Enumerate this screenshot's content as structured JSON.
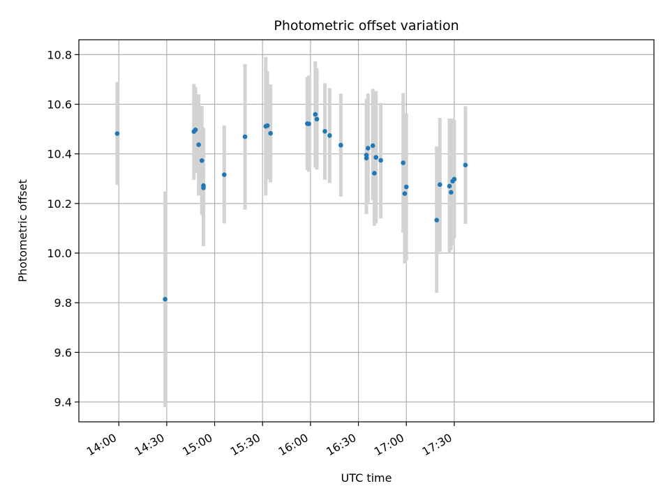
{
  "chart_data": {
    "type": "scatter",
    "title": "Photometric offset variation",
    "xlabel": "UTC time",
    "ylabel": "Photometric offset",
    "xlim": [
      "13:35",
      "19:35"
    ],
    "ylim": [
      9.32,
      10.86
    ],
    "x_ticks": [
      "14:00",
      "14:30",
      "15:00",
      "15:30",
      "16:00",
      "16:30",
      "17:00",
      "17:30"
    ],
    "y_ticks": [
      9.4,
      9.6,
      9.8,
      10.0,
      10.2,
      10.4,
      10.6,
      10.8
    ],
    "y_tick_labels": [
      "9.4",
      "9.6",
      "9.8",
      "10.0",
      "10.2",
      "10.4",
      "10.6",
      "10.8"
    ],
    "grid": true,
    "colors": {
      "points": "#1f77b4",
      "errorbars": "#d3d3d3",
      "grid": "#b0b0b0"
    },
    "points": [
      {
        "x": "13:59",
        "y": 10.482,
        "ylow": 10.275,
        "yhigh": 10.69
      },
      {
        "x": "14:29",
        "y": 9.814,
        "ylow": 9.38,
        "yhigh": 10.248
      },
      {
        "x": "14:47",
        "y": 10.49,
        "ylow": 10.295,
        "yhigh": 10.682
      },
      {
        "x": "14:48",
        "y": 10.497,
        "ylow": 10.323,
        "yhigh": 10.67
      },
      {
        "x": "14:50",
        "y": 10.437,
        "ylow": 10.232,
        "yhigh": 10.64
      },
      {
        "x": "14:52",
        "y": 10.373,
        "ylow": 10.153,
        "yhigh": 10.593
      },
      {
        "x": "14:53",
        "y": 10.272,
        "ylow": 10.04,
        "yhigh": 10.505
      },
      {
        "x": "14:53",
        "y": 10.263,
        "ylow": 10.028,
        "yhigh": 10.5
      },
      {
        "x": "15:06",
        "y": 10.316,
        "ylow": 10.12,
        "yhigh": 10.515
      },
      {
        "x": "15:19",
        "y": 10.469,
        "ylow": 10.175,
        "yhigh": 10.762
      },
      {
        "x": "15:32",
        "y": 10.511,
        "ylow": 10.232,
        "yhigh": 10.79
      },
      {
        "x": "15:33",
        "y": 10.514,
        "ylow": 10.297,
        "yhigh": 10.733
      },
      {
        "x": "15:35",
        "y": 10.483,
        "ylow": 10.285,
        "yhigh": 10.68
      },
      {
        "x": "15:58",
        "y": 10.522,
        "ylow": 10.335,
        "yhigh": 10.71
      },
      {
        "x": "15:59",
        "y": 10.521,
        "ylow": 10.327,
        "yhigh": 10.716
      },
      {
        "x": "16:03",
        "y": 10.559,
        "ylow": 10.345,
        "yhigh": 10.773
      },
      {
        "x": "16:04",
        "y": 10.54,
        "ylow": 10.337,
        "yhigh": 10.745
      },
      {
        "x": "16:09",
        "y": 10.491,
        "ylow": 10.296,
        "yhigh": 10.685
      },
      {
        "x": "16:12",
        "y": 10.474,
        "ylow": 10.282,
        "yhigh": 10.665
      },
      {
        "x": "16:19",
        "y": 10.435,
        "ylow": 10.228,
        "yhigh": 10.643
      },
      {
        "x": "16:35",
        "y": 10.383,
        "ylow": 10.157,
        "yhigh": 10.615
      },
      {
        "x": "16:35",
        "y": 10.395,
        "ylow": 10.168,
        "yhigh": 10.622
      },
      {
        "x": "16:36",
        "y": 10.423,
        "ylow": 10.203,
        "yhigh": 10.643
      },
      {
        "x": "16:39",
        "y": 10.433,
        "ylow": 10.213,
        "yhigh": 10.662
      },
      {
        "x": "16:40",
        "y": 10.322,
        "ylow": 10.11,
        "yhigh": 10.54
      },
      {
        "x": "16:41",
        "y": 10.386,
        "ylow": 10.12,
        "yhigh": 10.653
      },
      {
        "x": "16:41",
        "y": 10.386,
        "ylow": 10.145,
        "yhigh": 10.625
      },
      {
        "x": "16:44",
        "y": 10.374,
        "ylow": 10.14,
        "yhigh": 10.605
      },
      {
        "x": "16:58",
        "y": 10.364,
        "ylow": 10.082,
        "yhigh": 10.645
      },
      {
        "x": "16:59",
        "y": 10.24,
        "ylow": 9.958,
        "yhigh": 10.523
      },
      {
        "x": "17:00",
        "y": 10.267,
        "ylow": 9.97,
        "yhigh": 10.563
      },
      {
        "x": "17:19",
        "y": 10.133,
        "ylow": 9.84,
        "yhigh": 10.43
      },
      {
        "x": "17:21",
        "y": 10.276,
        "ylow": 10.005,
        "yhigh": 10.545
      },
      {
        "x": "17:27",
        "y": 10.27,
        "ylow": 10.0,
        "yhigh": 10.542
      },
      {
        "x": "17:28",
        "y": 10.245,
        "ylow": 10.012,
        "yhigh": 10.478
      },
      {
        "x": "17:29",
        "y": 10.29,
        "ylow": 10.032,
        "yhigh": 10.542
      },
      {
        "x": "17:30",
        "y": 10.298,
        "ylow": 10.06,
        "yhigh": 10.537
      },
      {
        "x": "17:37",
        "y": 10.355,
        "ylow": 10.118,
        "yhigh": 10.592
      }
    ]
  }
}
